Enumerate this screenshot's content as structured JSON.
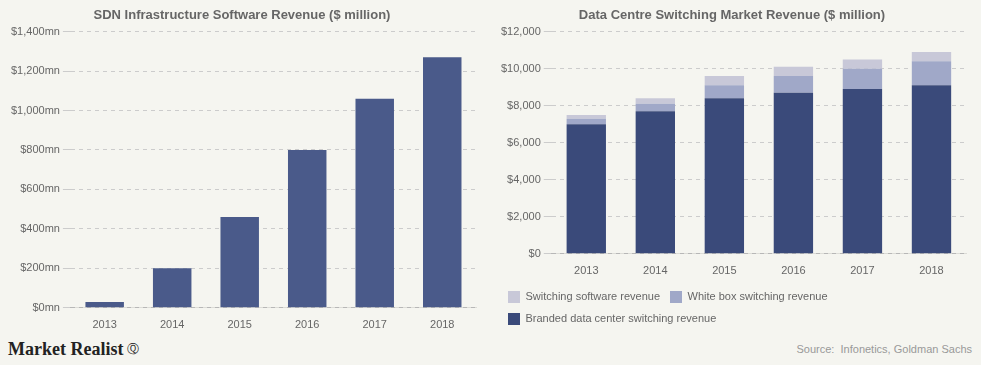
{
  "chart_data": [
    {
      "type": "bar",
      "title": "SDN Infrastructure Software Revenue ($ million)",
      "categories": [
        "2013",
        "2014",
        "2015",
        "2016",
        "2017",
        "2018"
      ],
      "values": [
        30,
        200,
        460,
        800,
        1060,
        1270
      ],
      "color": "#4a5a8a",
      "ylim": [
        0,
        1400
      ],
      "yticks": [
        {
          "value": 0,
          "label": "$0mn"
        },
        {
          "value": 200,
          "label": "$200mn"
        },
        {
          "value": 400,
          "label": "$400mn"
        },
        {
          "value": 600,
          "label": "$600mn"
        },
        {
          "value": 800,
          "label": "$800mn"
        },
        {
          "value": 1000,
          "label": "$1,000mn"
        },
        {
          "value": 1200,
          "label": "$1,200mn"
        },
        {
          "value": 1400,
          "label": "$1,400mn"
        }
      ],
      "grid": true,
      "annotations": [
        "Market Realist",
        "Ⓠ"
      ]
    },
    {
      "type": "bar",
      "title": "Data Centre Switching Market Revenue ($ million)",
      "categories": [
        "2013",
        "2014",
        "2015",
        "2016",
        "2017",
        "2018"
      ],
      "series": [
        {
          "name": "Branded data center switching revenue",
          "color": "#3a4a7a",
          "values": [
            7000,
            7700,
            8400,
            8700,
            8900,
            9100
          ]
        },
        {
          "name": "White box switching revenue",
          "color": "#a0a8c8",
          "values": [
            300,
            400,
            700,
            900,
            1100,
            1300
          ]
        },
        {
          "name": "Switching software revenue",
          "color": "#c8c8d8",
          "values": [
            200,
            300,
            500,
            500,
            500,
            500
          ]
        }
      ],
      "stacked": true,
      "ylim": [
        0,
        12000
      ],
      "yticks": [
        {
          "value": 0,
          "label": "$0"
        },
        {
          "value": 2000,
          "label": "$2,000"
        },
        {
          "value": 4000,
          "label": "$4,000"
        },
        {
          "value": 6000,
          "label": "$6,000"
        },
        {
          "value": 8000,
          "label": "$8,000"
        },
        {
          "value": 10000,
          "label": "$10,000"
        },
        {
          "value": 12000,
          "label": "$12,000"
        }
      ],
      "grid": true,
      "legend": "lower left",
      "annotations": [
        "Source:  Infonetics, Goldman Sachs"
      ]
    }
  ]
}
